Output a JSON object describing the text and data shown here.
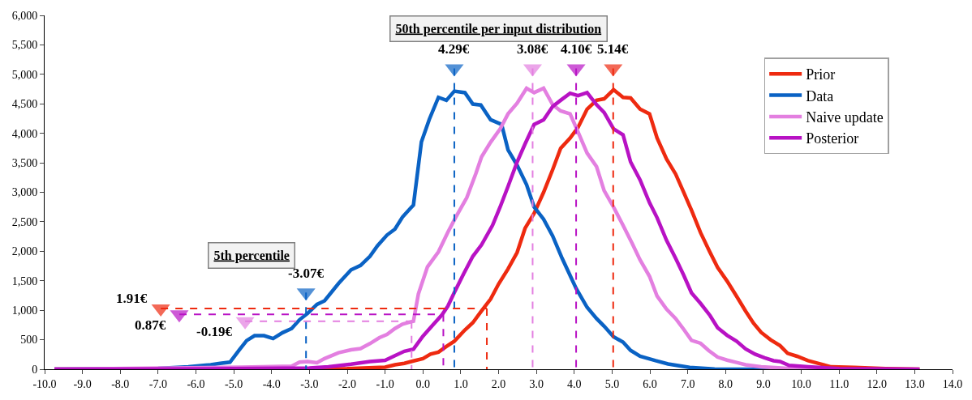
{
  "chart_data": {
    "type": "line",
    "xlim": [
      -10,
      14
    ],
    "xticks": [
      {
        "value": -10,
        "label": "-10.0"
      },
      {
        "value": -9,
        "label": "-9.0"
      },
      {
        "value": -8,
        "label": "-8.0"
      },
      {
        "value": -7,
        "label": "-7.0"
      },
      {
        "value": -6,
        "label": "-6.0"
      },
      {
        "value": -5,
        "label": "-5.0"
      },
      {
        "value": -4,
        "label": "-4.0"
      },
      {
        "value": -3,
        "label": "-3.0"
      },
      {
        "value": -2,
        "label": "-2.0"
      },
      {
        "value": -1,
        "label": "-1.0"
      },
      {
        "value": 0,
        "label": "0.0"
      },
      {
        "value": 1,
        "label": "1.0"
      },
      {
        "value": 2,
        "label": "2.0"
      },
      {
        "value": 3,
        "label": "3.0"
      },
      {
        "value": 4,
        "label": "4.0"
      },
      {
        "value": 5,
        "label": "5.0"
      },
      {
        "value": 6,
        "label": "6.0"
      },
      {
        "value": 7,
        "label": "7.0"
      },
      {
        "value": 8,
        "label": "8.0"
      },
      {
        "value": 9,
        "label": "9.0"
      },
      {
        "value": 10,
        "label": "10.0"
      },
      {
        "value": 11,
        "label": "11.0"
      },
      {
        "value": 12,
        "label": "12.0"
      },
      {
        "value": 13,
        "label": "13.0"
      },
      {
        "value": 14,
        "label": "14.0"
      }
    ],
    "ylim": [
      0,
      6000
    ],
    "yticks": [
      0,
      {
        "value": 500,
        "label": "500"
      },
      {
        "value": 1000,
        "label": "1,000"
      },
      {
        "value": 1500,
        "label": "1,500"
      },
      {
        "value": 2000,
        "label": "2,000"
      },
      {
        "value": 2500,
        "label": "2,500"
      },
      {
        "value": 3000,
        "label": "3,000"
      },
      {
        "value": 3500,
        "label": "3,500"
      },
      {
        "value": 4000,
        "label": "4,000"
      },
      {
        "value": 4500,
        "label": "4,500"
      },
      {
        "value": 5000,
        "label": "5,000"
      },
      {
        "value": 5500,
        "label": "5,500"
      },
      {
        "value": 6000,
        "label": "6,000"
      }
    ],
    "legend": "top right",
    "series": [
      {
        "name": "Prior",
        "color": "#ee2a10",
        "x": [
          -9.74,
          -3,
          -2,
          -1,
          -0.74,
          -0.49,
          -0.25,
          0.0,
          0.2,
          0.41,
          0.62,
          0.83,
          1.11,
          1.32,
          1.55,
          1.79,
          2.0,
          2.25,
          2.49,
          2.7,
          2.94,
          3.19,
          3.43,
          3.64,
          3.89,
          4.1,
          4.34,
          4.59,
          4.79,
          5.04,
          5.29,
          5.49,
          5.74,
          5.99,
          6.19,
          6.44,
          6.68,
          6.89,
          7.1,
          7.34,
          7.59,
          7.79,
          8.04,
          8.29,
          8.53,
          8.74,
          8.94,
          9.19,
          9.44,
          9.64,
          9.89,
          10.18,
          10.5,
          10.79,
          11.4,
          12.23,
          13.13
        ],
        "values": [
          0,
          0,
          10,
          35,
          75,
          100,
          140,
          180,
          255,
          290,
          385,
          475,
          665,
          790,
          990,
          1190,
          1445,
          1700,
          1980,
          2390,
          2645,
          3000,
          3385,
          3745,
          3920,
          4100,
          4410,
          4560,
          4585,
          4740,
          4610,
          4600,
          4410,
          4330,
          3920,
          3565,
          3310,
          3005,
          2695,
          2315,
          1980,
          1725,
          1495,
          1240,
          985,
          780,
          625,
          500,
          400,
          270,
          220,
          145,
          90,
          40,
          30,
          10,
          0
        ]
      },
      {
        "name": "Data",
        "color": "#0a62c4",
        "x": [
          -9.74,
          -8.5,
          -7,
          -6.2,
          -5.61,
          -5.36,
          -5.1,
          -4.85,
          -4.66,
          -4.45,
          -4.2,
          -3.96,
          -3.71,
          -3.47,
          -3.26,
          -3.05,
          -2.8,
          -2.6,
          -2.23,
          -1.9,
          -1.65,
          -1.4,
          -1.2,
          -0.95,
          -0.74,
          -0.54,
          -0.25,
          -0.04,
          0.17,
          0.41,
          0.62,
          0.83,
          1.11,
          1.32,
          1.53,
          1.79,
          2.08,
          2.25,
          2.49,
          2.74,
          2.94,
          3.19,
          3.43,
          3.68,
          4.05,
          4.34,
          4.59,
          4.79,
          5.04,
          5.29,
          5.49,
          5.74,
          6.15,
          6.48,
          7.05,
          7.71,
          9.35
        ],
        "values": [
          0,
          5,
          15,
          40,
          75,
          100,
          120,
          330,
          485,
          570,
          570,
          520,
          620,
          690,
          840,
          945,
          1100,
          1160,
          1455,
          1685,
          1760,
          1915,
          2095,
          2275,
          2375,
          2580,
          2785,
          3855,
          4240,
          4610,
          4560,
          4715,
          4690,
          4495,
          4480,
          4230,
          4150,
          3720,
          3460,
          3130,
          2750,
          2545,
          2260,
          1880,
          1370,
          1050,
          860,
          730,
          550,
          460,
          320,
          220,
          145,
          90,
          30,
          5,
          0
        ]
      },
      {
        "name": "Naive update",
        "color": "#e37fe0",
        "x": [
          -9.74,
          -4.79,
          -3.47,
          -3.26,
          -3.05,
          -2.8,
          -2.6,
          -2.23,
          -1.9,
          -1.65,
          -1.4,
          -1.15,
          -0.95,
          -0.74,
          -0.54,
          -0.25,
          -0.12,
          0.12,
          0.41,
          0.66,
          0.87,
          1.16,
          1.4,
          1.55,
          1.79,
          2.04,
          2.25,
          2.49,
          2.74,
          2.94,
          3.19,
          3.43,
          3.64,
          3.89,
          4.1,
          4.34,
          4.59,
          4.79,
          5.04,
          5.29,
          5.53,
          5.74,
          5.99,
          6.19,
          6.44,
          6.68,
          6.89,
          7.1,
          7.34,
          7.55,
          7.79,
          8.04,
          8.29,
          8.53,
          8.94,
          9.76,
          10.6
        ],
        "values": [
          0,
          35,
          50,
          120,
          130,
          110,
          180,
          280,
          330,
          350,
          435,
          535,
          590,
          690,
          765,
          815,
          1275,
          1735,
          1990,
          2325,
          2580,
          2910,
          3320,
          3600,
          3850,
          4075,
          4330,
          4510,
          4765,
          4690,
          4765,
          4485,
          4380,
          4330,
          4025,
          3665,
          3435,
          3030,
          2750,
          2440,
          2135,
          1855,
          1575,
          1240,
          1020,
          860,
          680,
          490,
          440,
          320,
          205,
          155,
          115,
          75,
          40,
          10,
          0
        ]
      },
      {
        "name": "Posterior",
        "color": "#b812c4",
        "x": [
          -9.74,
          -5,
          -3,
          -2.5,
          -1.9,
          -1.4,
          -1.0,
          -0.74,
          -0.49,
          -0.25,
          0.0,
          0.25,
          0.5,
          0.66,
          0.83,
          1.07,
          1.32,
          1.55,
          1.84,
          2.04,
          2.25,
          2.49,
          2.7,
          2.94,
          3.19,
          3.43,
          3.64,
          3.89,
          4.1,
          4.34,
          4.59,
          4.79,
          5.04,
          5.29,
          5.49,
          5.74,
          5.99,
          6.19,
          6.44,
          6.68,
          6.89,
          7.1,
          7.34,
          7.59,
          7.79,
          8.04,
          8.29,
          8.53,
          8.78,
          9.03,
          9.27,
          9.44,
          9.68,
          10.18,
          11.0,
          13.13
        ],
        "values": [
          0,
          10,
          20,
          40,
          85,
          130,
          150,
          230,
          305,
          340,
          560,
          740,
          920,
          1070,
          1300,
          1610,
          1915,
          2110,
          2440,
          2750,
          3100,
          3515,
          3820,
          4150,
          4230,
          4455,
          4560,
          4680,
          4640,
          4690,
          4485,
          4355,
          4075,
          3975,
          3515,
          3210,
          2825,
          2570,
          2185,
          1880,
          1600,
          1295,
          1115,
          910,
          705,
          575,
          475,
          345,
          255,
          195,
          145,
          130,
          65,
          40,
          10,
          0
        ]
      },
      {
        "color": "#0a62c4",
        "line_style": "dashed",
        "marker": "triangle",
        "x": [
          0.83,
          0.83
        ],
        "values": [
          5100,
          0
        ]
      },
      {
        "color": "#e37fe0",
        "line_style": "dashed",
        "marker": "triangle",
        "x": [
          2.9,
          2.9
        ],
        "values": [
          5100,
          0
        ]
      },
      {
        "color": "#b812c4",
        "line_style": "dashed",
        "marker": "triangle",
        "x": [
          4.05,
          4.05
        ],
        "values": [
          5100,
          0
        ]
      },
      {
        "color": "#ee2a10",
        "line_style": "dashed",
        "marker": "triangle",
        "x": [
          5.03,
          5.03
        ],
        "values": [
          5100,
          0
        ]
      },
      {
        "color": "#0a62c4",
        "line_style": "dashed",
        "marker": "triangle",
        "x": [
          -3.09,
          -3.09
        ],
        "values": [
          1300,
          0
        ]
      },
      {
        "color": "#ee2a10",
        "line_style": "dashed",
        "marker": "triangle",
        "x": [
          -6.93,
          1.69
        ],
        "values": [
          1030,
          1030
        ]
      },
      {
        "color": "#b812c4",
        "line_style": "dashed",
        "marker": "triangle",
        "x": [
          -6.44,
          0.54
        ],
        "values": [
          930,
          930
        ]
      },
      {
        "color": "#e37fe0",
        "line_style": "dashed",
        "marker": "triangle",
        "x": [
          -4.7,
          -0.3
        ],
        "values": [
          815,
          815
        ]
      },
      {
        "color": "#ee2a10",
        "line_style": "dashed",
        "x": [
          1.69,
          1.69
        ],
        "values": [
          1030,
          0
        ]
      },
      {
        "color": "#b812c4",
        "line_style": "dashed",
        "x": [
          0.54,
          0.54
        ],
        "values": [
          930,
          0
        ]
      },
      {
        "color": "#e37fe0",
        "line_style": "dashed",
        "x": [
          -0.3,
          -0.3
        ],
        "values": [
          815,
          0
        ]
      }
    ],
    "annotations": [
      "50th percentile per input distribution",
      "5th percentile",
      {
        "text": "4.29€",
        "x": 0.83,
        "y": 5100
      },
      {
        "text": "3.08€",
        "x": 2.9,
        "y": 5100
      },
      {
        "text": "4.10€",
        "x": 4.05,
        "y": 5100
      },
      {
        "text": "5.14€",
        "x": 5.03,
        "y": 5100
      },
      {
        "text": "-3.07€",
        "x": -3.09,
        "y": 1300
      },
      {
        "text": "1.91€",
        "x": -6.93,
        "y": 1030
      },
      {
        "text": "0.87€",
        "x": -6.44,
        "y": 930
      },
      {
        "text": "-0.19€",
        "x": -4.7,
        "y": 815
      }
    ]
  }
}
